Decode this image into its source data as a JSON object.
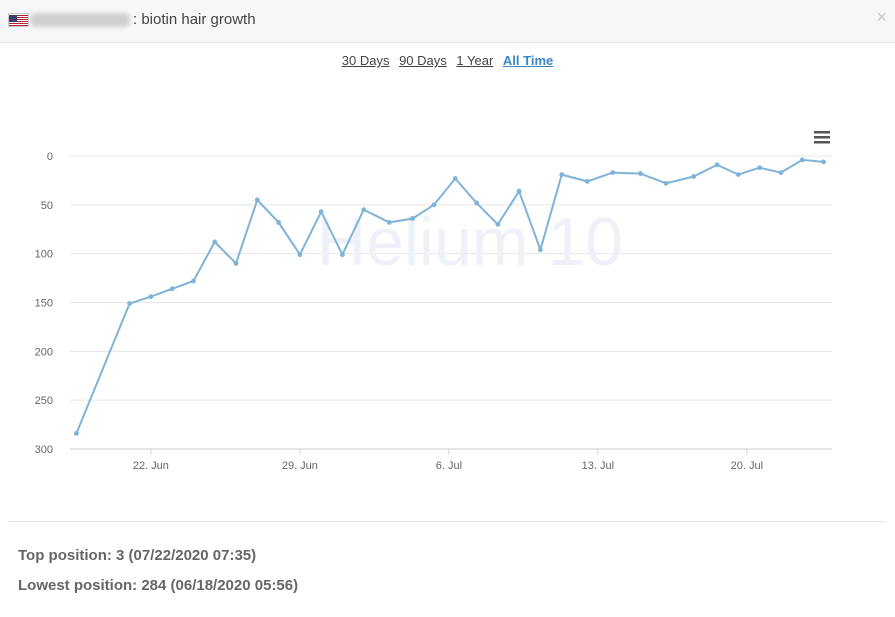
{
  "header": {
    "title": ": biotin hair growth",
    "close_label": "×"
  },
  "ranges": {
    "items": [
      {
        "label": "30 Days",
        "active": false
      },
      {
        "label": "90 Days",
        "active": false
      },
      {
        "label": "1 Year",
        "active": false
      },
      {
        "label": "All Time",
        "active": true
      }
    ]
  },
  "chart_data": {
    "type": "line",
    "y_reversed": true,
    "ylim": [
      0,
      300
    ],
    "yticks": [
      0,
      50,
      100,
      150,
      200,
      250,
      300
    ],
    "xticks": [
      {
        "label": "22. Jun",
        "day": 22
      },
      {
        "label": "29. Jun",
        "day": 29
      },
      {
        "label": "6. Jul",
        "day": 36
      },
      {
        "label": "13. Jul",
        "day": 43
      },
      {
        "label": "20. Jul",
        "day": 50
      }
    ],
    "xlim": [
      18.2,
      54.0
    ],
    "watermark": "Helium 10",
    "color": "#7fb3d8",
    "points": [
      [
        18.5,
        284
      ],
      [
        21.0,
        151
      ],
      [
        22.0,
        144
      ],
      [
        23.0,
        136
      ],
      [
        24.0,
        128
      ],
      [
        25.0,
        88
      ],
      [
        26.0,
        110
      ],
      [
        27.0,
        45
      ],
      [
        28.0,
        68
      ],
      [
        29.0,
        101
      ],
      [
        30.0,
        57
      ],
      [
        31.0,
        101
      ],
      [
        32.0,
        55
      ],
      [
        33.2,
        68
      ],
      [
        34.3,
        64
      ],
      [
        35.3,
        50
      ],
      [
        36.3,
        23
      ],
      [
        37.3,
        48
      ],
      [
        38.3,
        70
      ],
      [
        39.3,
        36
      ],
      [
        40.3,
        96
      ],
      [
        41.3,
        19
      ],
      [
        42.5,
        26
      ],
      [
        43.7,
        17
      ],
      [
        45.0,
        18
      ],
      [
        46.2,
        28
      ],
      [
        47.5,
        21
      ],
      [
        48.6,
        9
      ],
      [
        49.6,
        19
      ],
      [
        50.6,
        12
      ],
      [
        51.6,
        17
      ],
      [
        52.6,
        4
      ],
      [
        53.6,
        6
      ]
    ]
  },
  "stats": {
    "top": "Top position: 3 (07/22/2020 07:35)",
    "lowest": "Lowest position: 284 (06/18/2020 05:56)"
  },
  "colors": {
    "line": "#7fb3d8",
    "accent": "#3b86c8"
  }
}
